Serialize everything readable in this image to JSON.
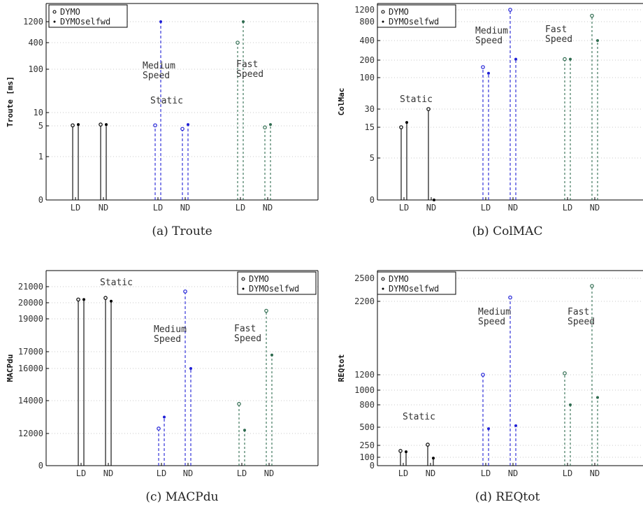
{
  "chart_data": [
    {
      "type": "stem",
      "panel": "a",
      "caption": "(a)  Troute",
      "ylabel": "Troute [ms]",
      "y_scale": "log-like (ticks at 0,1,5,10,100,400,1200)",
      "ytick_labels": [
        "0",
        "1",
        "5",
        "10",
        "100",
        "400",
        "1200"
      ],
      "x_tick_labels": [
        "LD",
        "ND",
        "LD",
        "ND",
        "LD",
        "ND"
      ],
      "group_labels": [
        [
          "Static"
        ],
        [
          "Medium",
          "Speed"
        ],
        [
          "Fast",
          "Speed"
        ]
      ],
      "legend": [
        "DYMO",
        "DYMOselfwd"
      ],
      "legend_position": "top-left",
      "colors": {
        "static": "#000000",
        "medium": "#1f1fd6",
        "fast": "#2e6b4f"
      },
      "series": [
        {
          "name": "DYMO",
          "values": [
            5.2,
            5.5,
            5.2,
            4.6,
            400,
            4.8
          ]
        },
        {
          "name": "DYMOselfwd",
          "values": [
            5.5,
            5.5,
            1200,
            5.5,
            1200,
            5.5
          ]
        }
      ]
    },
    {
      "type": "stem",
      "panel": "b",
      "caption": "(b)  ColMAC",
      "ylabel": "ColMac",
      "y_scale": "log-like (ticks at 0,5,15,30,100,200,400,800,1200)",
      "ytick_labels": [
        "0",
        "5",
        "15",
        "30",
        "100",
        "200",
        "400",
        "800",
        "1200"
      ],
      "x_tick_labels": [
        "LD",
        "ND",
        "LD",
        "ND",
        "LD",
        "ND"
      ],
      "group_labels": [
        [
          "Static"
        ],
        [
          "Medium",
          "Speed"
        ],
        [
          "Fast",
          "Speed"
        ]
      ],
      "legend": [
        "DYMO",
        "DYMOselfwd"
      ],
      "legend_position": "top-left",
      "colors": {
        "static": "#000000",
        "medium": "#1f1fd6",
        "fast": "#2e6b4f"
      },
      "series": [
        {
          "name": "DYMO",
          "values": [
            15,
            30,
            160,
            1200,
            210,
            1000
          ]
        },
        {
          "name": "DYMOselfwd",
          "values": [
            19,
            0,
            125,
            210,
            210,
            400
          ]
        }
      ]
    },
    {
      "type": "stem",
      "panel": "c",
      "caption": "(c)  MACPdu",
      "ylabel": "MACPdu",
      "y_scale": "nonlinear (ticks at 0,12000,14000,16000,17000,19000,20000,21000)",
      "ytick_labels": [
        "0",
        "12000",
        "14000",
        "16000",
        "17000",
        "19000",
        "20000",
        "21000"
      ],
      "x_tick_labels": [
        "LD",
        "ND",
        "LD",
        "ND",
        "LD",
        "ND"
      ],
      "group_labels": [
        [
          "Static"
        ],
        [
          "Medium",
          "Speed"
        ],
        [
          "Fast",
          "Speed"
        ]
      ],
      "legend": [
        "DYMO",
        "DYMOselfwd"
      ],
      "legend_position": "top-right",
      "colors": {
        "static": "#000000",
        "medium": "#1f1fd6",
        "fast": "#2e6b4f"
      },
      "series": [
        {
          "name": "DYMO",
          "values": [
            20200,
            20300,
            12300,
            20700,
            13800,
            19500
          ]
        },
        {
          "name": "DYMOselfwd",
          "values": [
            20200,
            20100,
            13000,
            16000,
            12200,
            16800
          ]
        }
      ]
    },
    {
      "type": "stem",
      "panel": "d",
      "caption": "(d)  REQtot",
      "ylabel": "REQtot",
      "y_scale": "nonlinear (ticks at 0,100,250,500,800,1000,1200,2200,2500)",
      "ytick_labels": [
        "0",
        "100",
        "250",
        "500",
        "800",
        "1000",
        "1200",
        "2200",
        "2500"
      ],
      "x_tick_labels": [
        "LD",
        "ND",
        "LD",
        "ND",
        "LD",
        "ND"
      ],
      "group_labels": [
        [
          "Static"
        ],
        [
          "Medium",
          "Speed"
        ],
        [
          "Fast",
          "Speed"
        ]
      ],
      "legend": [
        "DYMO",
        "DYMOselfwd"
      ],
      "legend_position": "top-left",
      "colors": {
        "static": "#000000",
        "medium": "#1f1fd6",
        "fast": "#2e6b4f"
      },
      "series": [
        {
          "name": "DYMO",
          "values": [
            180,
            260,
            1200,
            2250,
            1220,
            2400
          ]
        },
        {
          "name": "DYMOselfwd",
          "values": [
            170,
            90,
            480,
            520,
            800,
            900
          ]
        }
      ]
    }
  ]
}
